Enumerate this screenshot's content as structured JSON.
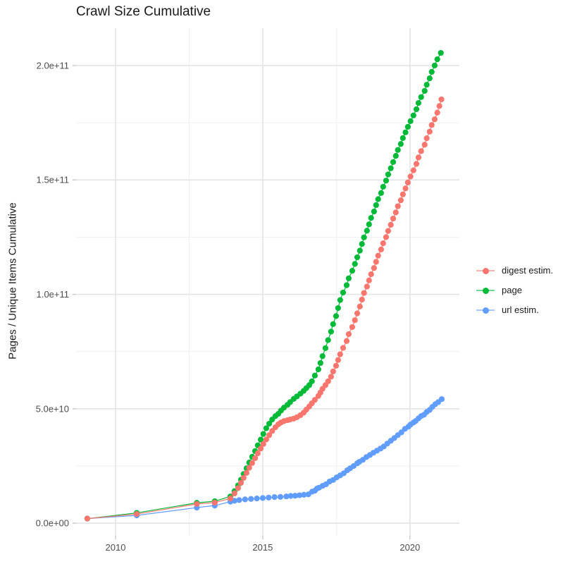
{
  "title": "Crawl Size Cumulative",
  "y_axis": {
    "label": "Pages / Unique Items Cumulative",
    "tick_labels": [
      "0.0e+00",
      "5.0e+10",
      "1.0e+11",
      "1.5e+11",
      "2.0e+11"
    ]
  },
  "x_axis": {
    "tick_labels": [
      "2010",
      "2015",
      "2020"
    ]
  },
  "legend": {
    "position": "right",
    "items": [
      {
        "label": "digest estim.",
        "color": "#F8766D"
      },
      {
        "label": "page",
        "color": "#00BA38"
      },
      {
        "label": "url estim.",
        "color": "#619CFF"
      }
    ]
  },
  "colors": {
    "digest": "#F8766D",
    "page": "#00BA38",
    "url": "#619CFF",
    "grid_major": "#e4e4e4",
    "grid_minor": "#f0f0f0",
    "tick_text": "#4d4d4d",
    "title_text": "#1a1a1a"
  },
  "chart_data": {
    "type": "scatter",
    "title": "Crawl Size Cumulative",
    "xlabel": "",
    "ylabel": "Pages / Unique Items Cumulative",
    "grid": true,
    "legend_position": "right",
    "values_unit": "1e9 (billions); y tick labels shown in scientific notation",
    "xlim": [
      2008.66,
      2021.68
    ],
    "ylim_e9": [
      -5.5,
      216.3
    ],
    "x_ticks": [
      2010,
      2015,
      2020
    ],
    "x_tick_labels": [
      "2010",
      "2015",
      "2020"
    ],
    "x_minor_ticks": [
      2012.5,
      2017.5
    ],
    "y_ticks_e9": [
      0,
      50,
      100,
      150,
      200
    ],
    "y_tick_labels": [
      "0.0e+00",
      "5.0e+10",
      "1.0e+11",
      "1.5e+11",
      "2.0e+11"
    ],
    "y_minor_ticks_e9": [
      25,
      75,
      125,
      175
    ],
    "series": [
      {
        "name": "digest estim.",
        "color": "#F8766D",
        "points": [
          [
            2009.04,
            2.0
          ],
          [
            2010.72,
            4.0
          ],
          [
            2012.76,
            8.4
          ],
          [
            2013.37,
            9.0
          ],
          [
            2013.9,
            10.8
          ],
          [
            2014.04,
            13.0
          ],
          [
            2014.16,
            15.3
          ],
          [
            2014.26,
            17.6
          ],
          [
            2014.35,
            19.8
          ],
          [
            2014.45,
            22.0
          ],
          [
            2014.54,
            24.2
          ],
          [
            2014.64,
            26.3
          ],
          [
            2014.74,
            28.4
          ],
          [
            2014.83,
            30.5
          ],
          [
            2014.93,
            32.6
          ],
          [
            2015.02,
            34.6
          ],
          [
            2015.12,
            36.6
          ],
          [
            2015.22,
            38.5
          ],
          [
            2015.32,
            40.3
          ],
          [
            2015.43,
            41.9
          ],
          [
            2015.53,
            43.2
          ],
          [
            2015.62,
            44.0
          ],
          [
            2015.72,
            44.6
          ],
          [
            2015.84,
            45.0
          ],
          [
            2015.93,
            45.3
          ],
          [
            2016.05,
            45.7
          ],
          [
            2016.16,
            46.3
          ],
          [
            2016.28,
            47.2
          ],
          [
            2016.39,
            48.3
          ],
          [
            2016.48,
            49.6
          ],
          [
            2016.58,
            51.0
          ],
          [
            2016.67,
            52.4
          ],
          [
            2016.77,
            53.9
          ],
          [
            2016.89,
            55.6
          ],
          [
            2016.96,
            57.1
          ],
          [
            2017.03,
            58.7
          ],
          [
            2017.13,
            60.3
          ],
          [
            2017.22,
            62.0
          ],
          [
            2017.32,
            64.0
          ],
          [
            2017.39,
            66.3
          ],
          [
            2017.49,
            68.8
          ],
          [
            2017.56,
            71.3
          ],
          [
            2017.63,
            73.8
          ],
          [
            2017.73,
            76.6
          ],
          [
            2017.85,
            79.6
          ],
          [
            2017.92,
            82.6
          ],
          [
            2018.04,
            85.7
          ],
          [
            2018.13,
            88.7
          ],
          [
            2018.21,
            91.7
          ],
          [
            2018.3,
            94.7
          ],
          [
            2018.37,
            97.7
          ],
          [
            2018.44,
            100.6
          ],
          [
            2018.54,
            103.4
          ],
          [
            2018.61,
            106.1
          ],
          [
            2018.68,
            108.8
          ],
          [
            2018.78,
            111.5
          ],
          [
            2018.85,
            114.2
          ],
          [
            2018.92,
            116.9
          ],
          [
            2019.02,
            119.6
          ],
          [
            2019.09,
            122.3
          ],
          [
            2019.19,
            125.0
          ],
          [
            2019.26,
            127.7
          ],
          [
            2019.35,
            130.4
          ],
          [
            2019.43,
            133.1
          ],
          [
            2019.52,
            135.8
          ],
          [
            2019.59,
            138.5
          ],
          [
            2019.69,
            141.1
          ],
          [
            2019.76,
            143.7
          ],
          [
            2019.85,
            146.3
          ],
          [
            2019.93,
            148.9
          ],
          [
            2020.02,
            151.5
          ],
          [
            2020.12,
            154.2
          ],
          [
            2020.22,
            157.0
          ],
          [
            2020.29,
            159.8
          ],
          [
            2020.38,
            162.6
          ],
          [
            2020.5,
            165.4
          ],
          [
            2020.57,
            168.2
          ],
          [
            2020.67,
            171.1
          ],
          [
            2020.74,
            174.0
          ],
          [
            2020.84,
            176.5
          ],
          [
            2020.93,
            179.4
          ],
          [
            2021.0,
            182.3
          ],
          [
            2021.07,
            185.2
          ]
        ]
      },
      {
        "name": "page",
        "color": "#00BA38",
        "points": [
          [
            2009.04,
            2.0
          ],
          [
            2010.72,
            4.5
          ],
          [
            2012.76,
            8.9
          ],
          [
            2013.37,
            9.6
          ],
          [
            2013.9,
            11.7
          ],
          [
            2014.04,
            14.0
          ],
          [
            2014.16,
            16.5
          ],
          [
            2014.26,
            19.0
          ],
          [
            2014.35,
            21.5
          ],
          [
            2014.45,
            24.0
          ],
          [
            2014.54,
            26.5
          ],
          [
            2014.64,
            29.0
          ],
          [
            2014.74,
            31.5
          ],
          [
            2014.83,
            34.0
          ],
          [
            2014.93,
            36.5
          ],
          [
            2015.02,
            39.0
          ],
          [
            2015.12,
            41.5
          ],
          [
            2015.22,
            43.5
          ],
          [
            2015.32,
            45.3
          ],
          [
            2015.43,
            46.8
          ],
          [
            2015.53,
            47.8
          ],
          [
            2015.62,
            49.2
          ],
          [
            2015.72,
            50.5
          ],
          [
            2015.84,
            51.7
          ],
          [
            2015.93,
            52.9
          ],
          [
            2016.05,
            54.3
          ],
          [
            2016.16,
            55.4
          ],
          [
            2016.28,
            56.6
          ],
          [
            2016.39,
            57.8
          ],
          [
            2016.48,
            59.0
          ],
          [
            2016.58,
            60.3
          ],
          [
            2016.67,
            62.0
          ],
          [
            2016.77,
            64.5
          ],
          [
            2016.89,
            67.2
          ],
          [
            2016.96,
            70.0
          ],
          [
            2017.03,
            73.0
          ],
          [
            2017.13,
            76.5
          ],
          [
            2017.22,
            80.0
          ],
          [
            2017.32,
            83.7
          ],
          [
            2017.39,
            87.0
          ],
          [
            2017.49,
            90.5
          ],
          [
            2017.56,
            94.0
          ],
          [
            2017.63,
            97.5
          ],
          [
            2017.73,
            100.8
          ],
          [
            2017.85,
            104.0
          ],
          [
            2017.92,
            107.0
          ],
          [
            2018.04,
            110.3
          ],
          [
            2018.13,
            113.3
          ],
          [
            2018.21,
            116.2
          ],
          [
            2018.3,
            119.1
          ],
          [
            2018.37,
            122.0
          ],
          [
            2018.44,
            124.9
          ],
          [
            2018.54,
            127.8
          ],
          [
            2018.61,
            130.6
          ],
          [
            2018.68,
            133.4
          ],
          [
            2018.78,
            136.2
          ],
          [
            2018.85,
            139.0
          ],
          [
            2018.92,
            141.6
          ],
          [
            2019.02,
            144.3
          ],
          [
            2019.09,
            147.0
          ],
          [
            2019.19,
            149.7
          ],
          [
            2019.26,
            152.4
          ],
          [
            2019.35,
            155.1
          ],
          [
            2019.43,
            157.8
          ],
          [
            2019.52,
            160.5
          ],
          [
            2019.59,
            163.1
          ],
          [
            2019.69,
            165.7
          ],
          [
            2019.76,
            168.3
          ],
          [
            2019.85,
            170.8
          ],
          [
            2019.93,
            173.2
          ],
          [
            2020.02,
            175.7
          ],
          [
            2020.12,
            178.2
          ],
          [
            2020.22,
            180.9
          ],
          [
            2020.29,
            183.6
          ],
          [
            2020.38,
            186.2
          ],
          [
            2020.5,
            188.9
          ],
          [
            2020.57,
            191.6
          ],
          [
            2020.67,
            194.4
          ],
          [
            2020.74,
            197.2
          ],
          [
            2020.84,
            200.0
          ],
          [
            2020.93,
            202.7
          ],
          [
            2021.05,
            205.5
          ]
        ]
      },
      {
        "name": "url estim.",
        "color": "#619CFF",
        "points": [
          [
            2009.04,
            2.0
          ],
          [
            2010.72,
            3.4
          ],
          [
            2012.76,
            6.8
          ],
          [
            2013.37,
            7.7
          ],
          [
            2013.9,
            9.4
          ],
          [
            2014.04,
            9.8
          ],
          [
            2014.2,
            10.1
          ],
          [
            2014.4,
            10.4
          ],
          [
            2014.6,
            10.6
          ],
          [
            2014.8,
            10.8
          ],
          [
            2015.0,
            11.0
          ],
          [
            2015.2,
            11.2
          ],
          [
            2015.4,
            11.4
          ],
          [
            2015.6,
            11.5
          ],
          [
            2015.8,
            11.7
          ],
          [
            2015.95,
            11.9
          ],
          [
            2016.1,
            12.0
          ],
          [
            2016.25,
            12.2
          ],
          [
            2016.4,
            12.4
          ],
          [
            2016.55,
            12.6
          ],
          [
            2016.68,
            13.8
          ],
          [
            2016.77,
            14.2
          ],
          [
            2016.84,
            15.1
          ],
          [
            2016.91,
            15.5
          ],
          [
            2017.03,
            16.3
          ],
          [
            2017.15,
            17.0
          ],
          [
            2017.27,
            18.2
          ],
          [
            2017.39,
            18.9
          ],
          [
            2017.51,
            20.0
          ],
          [
            2017.63,
            20.9
          ],
          [
            2017.75,
            21.8
          ],
          [
            2017.87,
            23.1
          ],
          [
            2017.97,
            24.0
          ],
          [
            2018.09,
            25.0
          ],
          [
            2018.21,
            26.2
          ],
          [
            2018.28,
            26.8
          ],
          [
            2018.4,
            27.7
          ],
          [
            2018.52,
            28.9
          ],
          [
            2018.64,
            29.8
          ],
          [
            2018.76,
            30.8
          ],
          [
            2018.88,
            31.7
          ],
          [
            2019.0,
            32.6
          ],
          [
            2019.11,
            33.5
          ],
          [
            2019.23,
            34.8
          ],
          [
            2019.35,
            36.0
          ],
          [
            2019.47,
            37.2
          ],
          [
            2019.59,
            38.5
          ],
          [
            2019.71,
            39.7
          ],
          [
            2019.83,
            41.2
          ],
          [
            2019.95,
            42.2
          ],
          [
            2020.02,
            43.1
          ],
          [
            2020.12,
            44.0
          ],
          [
            2020.19,
            44.6
          ],
          [
            2020.29,
            45.8
          ],
          [
            2020.38,
            46.8
          ],
          [
            2020.48,
            47.4
          ],
          [
            2020.57,
            48.6
          ],
          [
            2020.67,
            49.5
          ],
          [
            2020.76,
            50.8
          ],
          [
            2020.86,
            52.0
          ],
          [
            2020.96,
            52.9
          ],
          [
            2021.08,
            54.2
          ]
        ]
      }
    ]
  }
}
